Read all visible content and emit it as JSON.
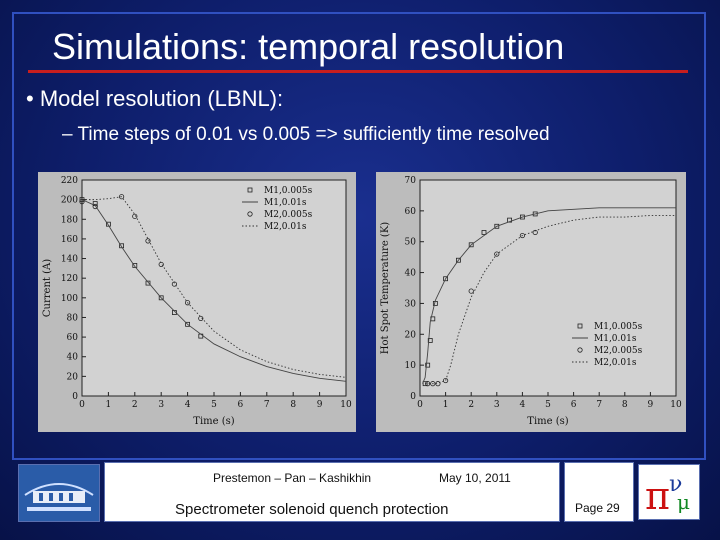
{
  "slide": {
    "title": "Simulations: temporal resolution",
    "bullet1": "•  Model resolution (LBNL):",
    "bullet2": "– Time steps of 0.01 vs 0.005 => sufficiently time resolved"
  },
  "footer": {
    "authors": "Prestemon – Pan – Kashikhin",
    "date": "May 10, 2011",
    "subtitle": "Spectrometer solenoid quench protection",
    "page": "Page 29"
  },
  "colors": {
    "accent_rule": "#c81e1e",
    "background": "#0e1e6b",
    "plot_bg": "#bcbcbc"
  },
  "chart_data": [
    {
      "type": "line",
      "title": "",
      "xlabel": "Time (s)",
      "ylabel": "Current (A)",
      "xlim": [
        0,
        10
      ],
      "ylim": [
        0,
        220
      ],
      "xticks": [
        0,
        1,
        2,
        3,
        4,
        5,
        6,
        7,
        8,
        9,
        10
      ],
      "yticks": [
        0,
        20,
        40,
        60,
        80,
        100,
        120,
        140,
        160,
        180,
        200,
        220
      ],
      "legend_position": "top-right",
      "series": [
        {
          "name": "M1,0.005s",
          "style": "square-markers",
          "x": [
            0,
            0.5,
            1.0,
            1.5,
            2.0,
            2.5,
            3.0,
            3.5,
            4.0,
            4.5
          ],
          "y": [
            200,
            196,
            175,
            153,
            133,
            115,
            100,
            85,
            73,
            61
          ]
        },
        {
          "name": "M1,0.01s",
          "style": "solid",
          "x": [
            0,
            0.5,
            1.0,
            1.5,
            2.0,
            3.0,
            4.0,
            5.0,
            6.0,
            7.0,
            8.0,
            9.0,
            10.0
          ],
          "y": [
            200,
            194,
            174,
            152,
            132,
            100,
            73,
            53,
            40,
            30,
            23,
            18,
            15
          ]
        },
        {
          "name": "M2,0.005s",
          "style": "circle-markers",
          "x": [
            0,
            0.5,
            1.5,
            2.0,
            2.5,
            3.0,
            3.5,
            4.0,
            4.5
          ],
          "y": [
            198,
            193,
            203,
            183,
            158,
            134,
            114,
            95,
            79
          ]
        },
        {
          "name": "M2,0.01s",
          "style": "dotted",
          "x": [
            0,
            0.5,
            1.0,
            1.5,
            2.0,
            2.5,
            3.0,
            4.0,
            5.0,
            6.0,
            7.0,
            8.0,
            9.0,
            10.0
          ],
          "y": [
            200,
            200,
            201,
            203,
            185,
            160,
            135,
            95,
            66,
            47,
            35,
            27,
            22,
            19
          ]
        }
      ]
    },
    {
      "type": "line",
      "title": "",
      "xlabel": "Time (s)",
      "ylabel": "Hot Spot Temperature (K)",
      "xlim": [
        0,
        10
      ],
      "ylim": [
        0,
        70
      ],
      "xticks": [
        0,
        1,
        2,
        3,
        4,
        5,
        6,
        7,
        8,
        9,
        10
      ],
      "yticks": [
        0,
        10,
        20,
        30,
        40,
        50,
        60,
        70
      ],
      "legend_position": "bottom-right",
      "series": [
        {
          "name": "M1,0.005s",
          "style": "square-markers",
          "x": [
            0.2,
            0.3,
            0.4,
            0.5,
            0.6,
            1.0,
            1.5,
            2.0,
            2.5,
            3.0,
            3.5,
            4.0,
            4.5
          ],
          "y": [
            4,
            10,
            18,
            25,
            30,
            38,
            44,
            49,
            53,
            55,
            57,
            58,
            59
          ]
        },
        {
          "name": "M1,0.01s",
          "style": "solid",
          "x": [
            0.1,
            0.2,
            0.3,
            0.4,
            0.6,
            1.0,
            1.5,
            2.0,
            3.0,
            4.0,
            5.0,
            6.0,
            7.0,
            8.0,
            9.0,
            10.0
          ],
          "y": [
            4,
            6,
            14,
            24,
            31,
            38,
            44,
            49,
            55,
            58,
            60,
            60.5,
            61,
            61,
            61,
            61
          ]
        },
        {
          "name": "M2,0.005s",
          "style": "circle-markers",
          "x": [
            0.3,
            0.5,
            0.7,
            1.0,
            2.0,
            3.0,
            4.0,
            4.5
          ],
          "y": [
            4,
            4,
            4,
            5,
            34,
            46,
            52,
            53
          ]
        },
        {
          "name": "M2,0.01s",
          "style": "dotted",
          "x": [
            0.2,
            0.6,
            1.0,
            1.2,
            1.5,
            2.0,
            2.5,
            3.0,
            4.0,
            5.0,
            6.0,
            7.0,
            8.0,
            9.0,
            10.0
          ],
          "y": [
            4,
            4,
            5,
            10,
            20,
            32,
            40,
            46,
            52,
            55,
            57,
            58,
            58,
            58.5,
            58.5
          ]
        }
      ]
    }
  ]
}
